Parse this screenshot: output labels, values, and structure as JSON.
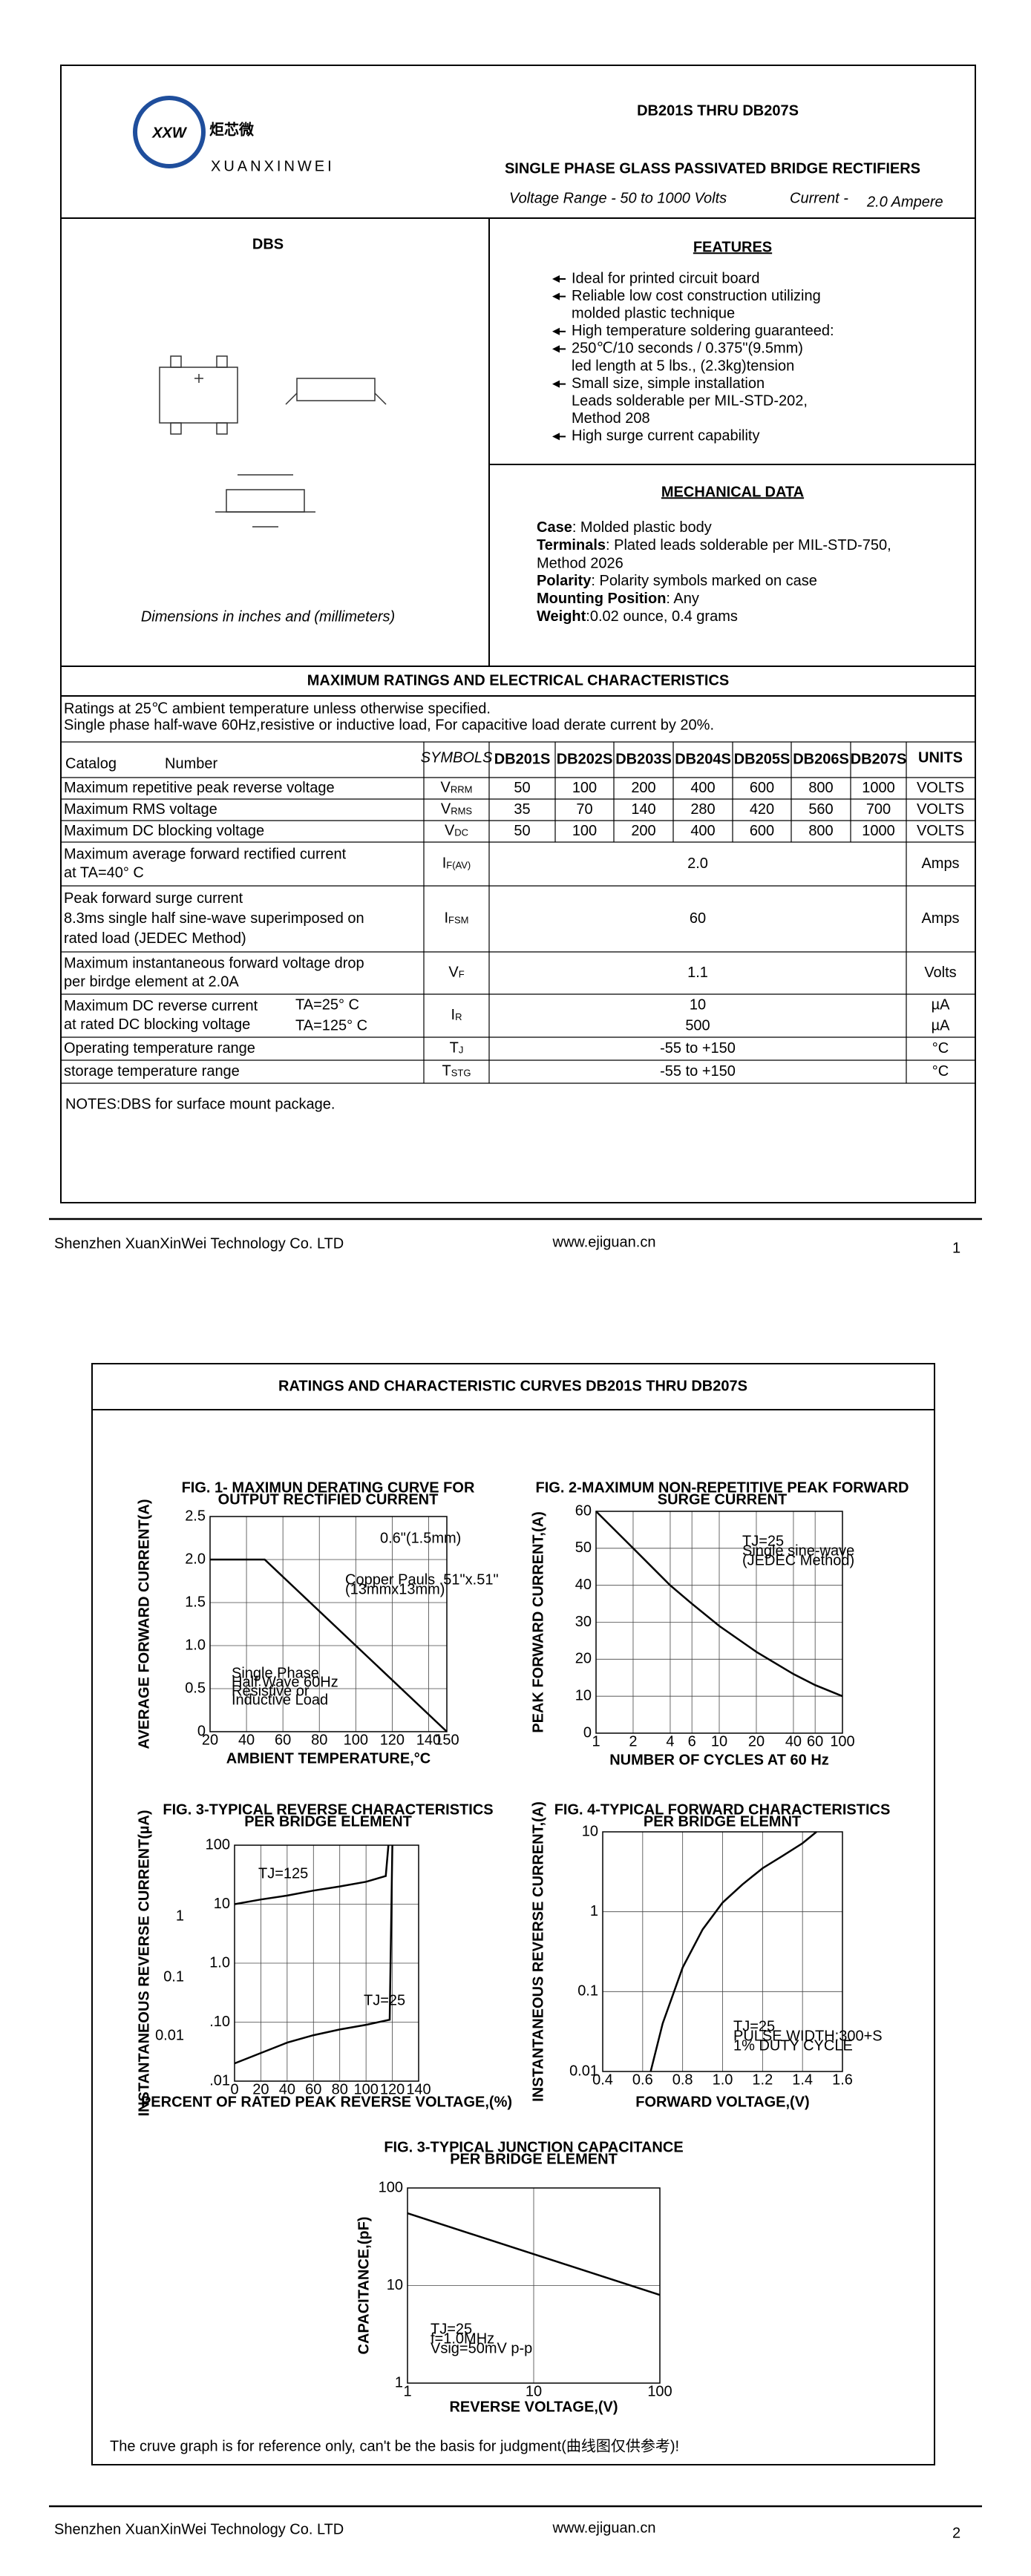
{
  "header": {
    "logo_mark": "XXW",
    "logo_cn": "炬芯微",
    "logo_en": "XUANXINWEI",
    "title": "DB201S THRU DB207S",
    "subtitle": "SINGLE PHASE GLASS PASSIVATED BRIDGE RECTIFIERS",
    "voltage_range": "Voltage Range - 50 to 1000 Volts",
    "current_label": "Current -",
    "current_value": "2.0 Ampere"
  },
  "package": {
    "name": "DBS",
    "caption": "Dimensions in inches and (millimeters)"
  },
  "features": {
    "title": "FEATURES",
    "items": [
      [
        "Ideal for printed circuit board"
      ],
      [
        "Reliable low cost construction utilizing",
        "molded plastic technique"
      ],
      [
        "High temperature soldering guaranteed:"
      ],
      [
        "250℃/10 seconds / 0.375\"(9.5mm)",
        "led length at 5 lbs., (2.3kg)tension"
      ],
      [
        "Small size, simple installation",
        "Leads solderable per MIL-STD-202,",
        "Method 208"
      ],
      [
        "High surge current capability"
      ]
    ]
  },
  "mechanical": {
    "title": "MECHANICAL DATA",
    "items": [
      {
        "label": "Case",
        "text": ": Molded plastic body"
      },
      {
        "label": "Terminals",
        "text": ": Plated leads solderable per MIL-STD-750,",
        "more": " Method 2026"
      },
      {
        "label": "Polarity",
        "text": ": Polarity symbols marked on case"
      },
      {
        "label": "Mounting Position",
        "text": ": Any"
      },
      {
        "label": "Weight",
        "text": ":0.02 ounce, 0.4 grams"
      }
    ]
  },
  "ratings": {
    "title": "MAXIMUM RATINGS AND ELECTRICAL CHARACTERISTICS",
    "conditions": [
      "Ratings at 25℃ ambient temperature unless otherwise specified.",
      "Single phase half-wave 60Hz,resistive or inductive load, For capacitive load derate current by 20%."
    ],
    "table": {
      "header": {
        "catalog": "Catalog",
        "number": "Number",
        "symbols": "SYMBOLS",
        "devices": [
          "DB201S",
          "DB202S",
          "DB203S",
          "DB204S",
          "DB205S",
          "DB206S",
          "DB207S"
        ],
        "units": "UNITS"
      },
      "rows": [
        {
          "param": [
            "Maximum repetitive peak reverse voltage"
          ],
          "symbol": "V",
          "symbol_sub": "RRM",
          "values": [
            "50",
            "100",
            "200",
            "400",
            "600",
            "800",
            "1000"
          ],
          "units": [
            "VOLTS"
          ]
        },
        {
          "param": [
            "Maximum RMS voltage"
          ],
          "symbol": "V",
          "symbol_sub": "RMS",
          "values": [
            "35",
            "70",
            "140",
            "280",
            "420",
            "560",
            "700"
          ],
          "units": [
            "VOLTS"
          ]
        },
        {
          "param": [
            "Maximum DC blocking voltage"
          ],
          "symbol": "V",
          "symbol_sub": "DC",
          "values": [
            "50",
            "100",
            "200",
            "400",
            "600",
            "800",
            "1000"
          ],
          "units": [
            "VOLTS"
          ]
        },
        {
          "param": [
            "Maximum average forward rectified current",
            "at TA=40° C"
          ],
          "symbol": "I",
          "symbol_sub": "F(AV)",
          "values": [
            "2.0"
          ],
          "units": [
            "Amps"
          ]
        },
        {
          "param": [
            "Peak forward surge current",
            "8.3ms single half sine-wave superimposed on",
            "rated load (JEDEC Method)"
          ],
          "symbol": "I",
          "symbol_sub": "FSM",
          "values": [
            "60"
          ],
          "units": [
            "Amps"
          ]
        },
        {
          "param": [
            "Maximum instantaneous forward voltage drop",
            "per birdge element at 2.0A"
          ],
          "symbol": "V",
          "symbol_sub": "F",
          "values": [
            "1.1"
          ],
          "units": [
            "Volts"
          ]
        },
        {
          "param": [
            "Maximum DC reverse current",
            "at rated DC blocking voltage"
          ],
          "conditions": [
            "TA=25° C",
            "TA=125° C"
          ],
          "symbol": "I",
          "symbol_sub": "R",
          "values": [
            "10",
            "500"
          ],
          "units": [
            "µA",
            "µA"
          ]
        },
        {
          "param": [
            "Operating temperature range"
          ],
          "symbol": "T",
          "symbol_sub": "J",
          "values": [
            "-55 to +150"
          ],
          "units": [
            "°C"
          ]
        },
        {
          "param": [
            "storage temperature range"
          ],
          "symbol": "T",
          "symbol_sub": "STG",
          "values": [
            "-55 to +150"
          ],
          "units": [
            "°C"
          ]
        }
      ]
    }
  },
  "notes": "NOTES:DBS for surface mount package.",
  "footer": {
    "company": "Shenzhen XuanXinWei Technology Co. LTD",
    "website": "www.ejiguan.cn",
    "page": "1"
  },
  "page2": {
    "title": "RATINGS AND CHARACTERISTIC CURVES DB201S THRU DB207S",
    "figures": [
      {
        "type": "line",
        "title": [
          "FIG. 1- MAXIMUN DERATING CURVE FOR",
          "OUTPUT RECTIFIED CURRENT"
        ],
        "x_label": "AMBIENT TEMPERATURE,°C",
        "y_label": "AVERAGE FORWARD CURRENT(A)",
        "xlim": [
          20,
          150
        ],
        "ylim": [
          0,
          2.5
        ],
        "xticks": [
          20,
          40,
          60,
          80,
          100,
          120,
          140,
          150
        ],
        "yticks": [
          0,
          0.5,
          {
            "value": 1,
            "label": "1.0"
          },
          1.5,
          {
            "value": 2,
            "label": "2.0"
          },
          2.5
        ],
        "grid": true,
        "series": [
          {
            "color": "#000000",
            "x": [
              20,
              50,
              150
            ],
            "values": [
              2,
              2,
              0
            ]
          }
        ],
        "annotations": [
          "0.6\"(1.5mm)",
          "Copper Pauls .51\"x.51\"",
          "(13mmx13mm)",
          "Single Phase",
          "Half Wave 60Hz",
          "Resistive or",
          "Inductive Load"
        ]
      },
      {
        "type": "line",
        "title": [
          "FIG. 2-MAXIMUM NON-REPETITIVE PEAK FORWARD",
          "SURGE CURRENT"
        ],
        "x_label": "NUMBER OF CYCLES AT 60 Hz",
        "y_label": "PEAK  FORWARD CURRENT,(A)",
        "xlog": true,
        "xlim": [
          1,
          100
        ],
        "ylim": [
          0,
          60
        ],
        "xticks": [
          1,
          2,
          4,
          6,
          10,
          20,
          40,
          60,
          100
        ],
        "yticks": [
          0,
          10,
          20,
          30,
          40,
          50,
          60
        ],
        "grid": true,
        "series": [
          {
            "color": "#000000",
            "x": [
              1,
              2,
              4,
              6,
              10,
              20,
              40,
              60,
              100
            ],
            "values": [
              60,
              50,
              40,
              35,
              29,
              22,
              16,
              13,
              10
            ]
          }
        ],
        "annotations": [
          "TJ=25",
          "Single sine-wave",
          "(JEDEC Method)"
        ]
      },
      {
        "type": "line",
        "title": [
          "FIG. 3-TYPICAL REVERSE CHARACTERISTICS",
          "PER BRIDGE ELEMENT"
        ],
        "x_label": "PERCENT OF RATED PEAK REVERSE VOLTAGE,(%)",
        "y_label": "INSTANTANEOUS REVERSE CURRENT(µA)",
        "ylog": true,
        "xlim": [
          0,
          140
        ],
        "ylim": [
          0.01,
          100
        ],
        "xticks": [
          0,
          20,
          40,
          60,
          80,
          100,
          120,
          140
        ],
        "yticks": [
          {
            "value": 0.01,
            "label": ".01"
          },
          {
            "value": 0.1,
            "label": ".10"
          },
          {
            "value": 1,
            "label": "1.0"
          },
          10,
          100
        ],
        "grid": true,
        "series": [
          {
            "name": "TJ=125",
            "color": "#000000",
            "x": [
              0,
              20,
              40,
              60,
              80,
              100,
              115,
              117
            ],
            "values": [
              10,
              12,
              14,
              17,
              20,
              24,
              30,
              100
            ]
          },
          {
            "name": "TJ=25",
            "color": "#000000",
            "x": [
              0,
              20,
              40,
              60,
              80,
              100,
              118,
              120
            ],
            "values": [
              0.02,
              0.03,
              0.045,
              0.06,
              0.075,
              0.09,
              0.11,
              100
            ]
          }
        ],
        "annotations": [
          "1",
          "0.1",
          "0.01"
        ]
      },
      {
        "type": "line",
        "title": [
          "FIG. 4-TYPICAL FORWARD CHARACTERISTICS",
          "PER BRIDGE ELEMNT"
        ],
        "x_label": "FORWARD VOLTAGE,(V)",
        "y_label": "INSTANTANEOUS REVERSE CURRENT,(A)",
        "ylog": true,
        "xlim": [
          0.4,
          1.6
        ],
        "ylim": [
          0.01,
          10
        ],
        "xticks": [
          0.4,
          0.6,
          0.8,
          {
            "value": 1,
            "label": "1.0"
          },
          1.2,
          1.4,
          1.6
        ],
        "yticks": [
          0.01,
          0.1,
          1,
          10
        ],
        "grid": true,
        "series": [
          {
            "color": "#000000",
            "x": [
              0.64,
              0.7,
              0.8,
              0.9,
              1.0,
              1.1,
              1.2,
              1.3,
              1.4,
              1.47
            ],
            "values": [
              0.01,
              0.04,
              0.2,
              0.6,
              1.3,
              2.2,
              3.5,
              5,
              7.2,
              10
            ]
          }
        ],
        "annotations": [
          "TJ=25",
          "PULSE WIDTH:300+S",
          "1% DUTY CYCLE"
        ]
      },
      {
        "type": "line",
        "title": [
          "FIG. 3-TYPICAL JUNCTION CAPACITANCE",
          "PER BRIDGE ELEMENT"
        ],
        "x_label": "REVERSE VOLTAGE,(V)",
        "y_label": "CAPACITANCE,(pF)",
        "xlog": true,
        "ylog": true,
        "xlim": [
          1,
          100
        ],
        "ylim": [
          1,
          100
        ],
        "xticks": [
          1,
          10,
          100
        ],
        "yticks": [
          1,
          10,
          100
        ],
        "grid": true,
        "series": [
          {
            "color": "#000000",
            "x": [
              1,
              100
            ],
            "values": [
              55,
              8
            ]
          }
        ],
        "annotations": [
          "TJ=25",
          "f=1.0MHz",
          "Vsig=50mV p-p"
        ]
      }
    ],
    "disclaimer": "The cruve graph is for reference only, can't be the basis for judgment(曲线图仅供参考)!",
    "footer": {
      "company": "Shenzhen XuanXinWei Technology Co. LTD",
      "website": "www.ejiguan.cn",
      "page": "2"
    }
  }
}
